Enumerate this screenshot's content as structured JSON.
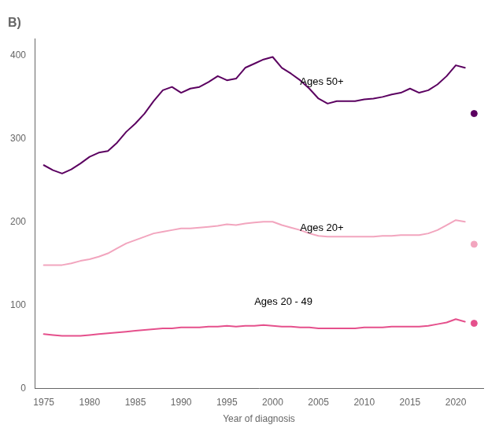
{
  "chart_data": {
    "type": "line",
    "title": "B)",
    "xlabel": "Year of diagnosis",
    "x": [
      1975,
      1976,
      1977,
      1978,
      1979,
      1980,
      1981,
      1982,
      1983,
      1984,
      1985,
      1986,
      1987,
      1988,
      1989,
      1990,
      1991,
      1992,
      1993,
      1994,
      1995,
      1996,
      1997,
      1998,
      1999,
      2000,
      2001,
      2002,
      2003,
      2004,
      2005,
      2006,
      2007,
      2008,
      2009,
      2010,
      2011,
      2012,
      2013,
      2014,
      2015,
      2016,
      2017,
      2018,
      2019,
      2020,
      2021
    ],
    "series": [
      {
        "color": "#5B0060",
        "values": [
          268,
          262,
          258,
          263,
          270,
          278,
          283,
          285,
          295,
          308,
          318,
          330,
          345,
          358,
          362,
          355,
          360,
          362,
          368,
          375,
          370,
          372,
          385,
          390,
          395,
          398,
          385,
          378,
          370,
          360,
          348,
          342,
          345,
          345,
          345,
          347,
          348,
          350,
          353,
          355,
          360,
          355,
          358,
          365,
          375,
          388,
          385
        ]
      },
      {
        "color": "#F2A5BE",
        "values": [
          148,
          148,
          148,
          150,
          153,
          155,
          158,
          162,
          168,
          174,
          178,
          182,
          186,
          188,
          190,
          192,
          192,
          193,
          194,
          195,
          197,
          196,
          198,
          199,
          200,
          200,
          196,
          193,
          190,
          186,
          183,
          182,
          182,
          182,
          182,
          182,
          182,
          183,
          183,
          184,
          184,
          184,
          186,
          190,
          196,
          202,
          200
        ]
      },
      {
        "color": "#E5508C",
        "values": [
          65,
          64,
          63,
          63,
          63,
          64,
          65,
          66,
          67,
          68,
          69,
          70,
          71,
          72,
          72,
          73,
          73,
          73,
          74,
          74,
          75,
          74,
          75,
          75,
          76,
          75,
          74,
          74,
          73,
          73,
          72,
          72,
          72,
          72,
          72,
          73,
          73,
          73,
          74,
          74,
          74,
          74,
          75,
          77,
          79,
          83,
          80
        ]
      },
      {
        "type": "scatter",
        "marker": "circle",
        "color": "#5B0060",
        "x": [
          2022
        ],
        "values": [
          330
        ]
      },
      {
        "type": "scatter",
        "marker": "circle",
        "color": "#F2A5BE",
        "x": [
          2022
        ],
        "values": [
          173
        ]
      },
      {
        "type": "scatter",
        "marker": "circle",
        "color": "#E5508C",
        "x": [
          2022
        ],
        "values": [
          78
        ]
      }
    ],
    "annotations": [
      {
        "text": "Ages 50+",
        "x": 2003,
        "y": 368
      },
      {
        "text": "Ages 20+",
        "x": 2003,
        "y": 192
      },
      {
        "text": "Ages 20 - 49",
        "x": 1998,
        "y": 104
      }
    ],
    "xlim": [
      1974,
      2023
    ],
    "xticks": [
      1975,
      1980,
      1985,
      1990,
      1995,
      2000,
      2005,
      2010,
      2015,
      2020
    ],
    "ylim": [
      0,
      420
    ],
    "yticks": [
      0,
      100,
      200,
      300,
      400
    ],
    "grid": false
  }
}
